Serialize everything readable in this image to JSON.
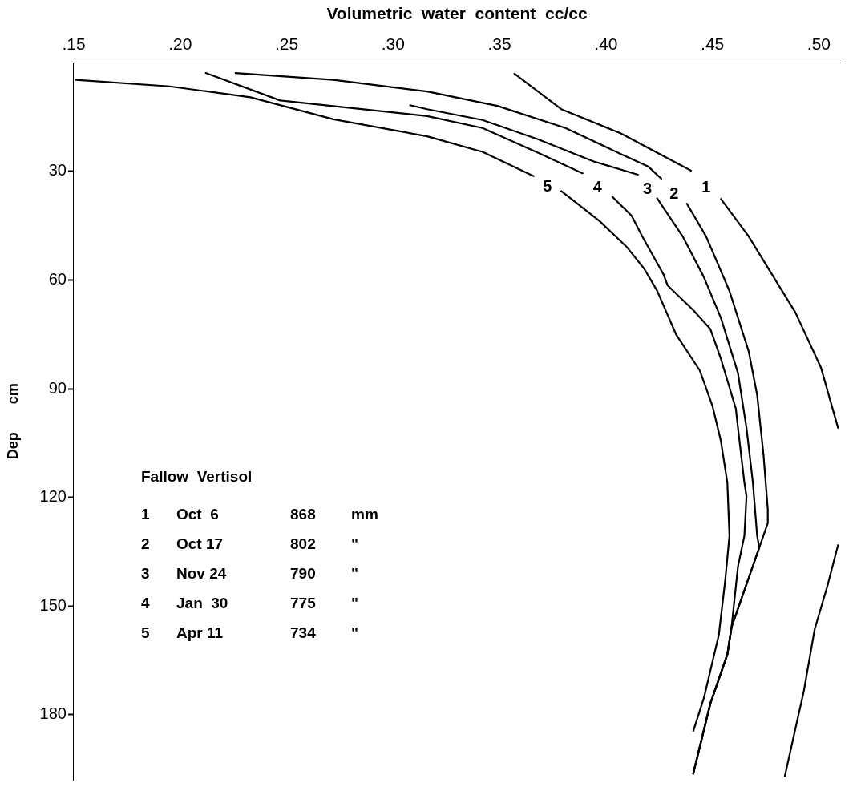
{
  "chart_data": {
    "type": "line",
    "xlabel": "Volumetric  water  content  cc/cc",
    "ylabel": "Dep       cm",
    "legend_title": "Fallow  Vertisol",
    "annotations": [
      "1\tOct  6\t868\tmm",
      "2\tOct 17\t802\t\"",
      "3\tNov 24\t790\t\"",
      "4\tJan  30\t775\t\"",
      "5\tApr 11\t734\t\""
    ],
    "xlim": [
      0.15,
      0.51
    ],
    "xticks": [
      {
        "value": 0.15,
        "label": ".15"
      },
      {
        "value": 0.2,
        "label": ".20"
      },
      {
        "value": 0.25,
        "label": ".25"
      },
      {
        "value": 0.3,
        "label": ".30"
      },
      {
        "value": 0.35,
        "label": ".35"
      },
      {
        "value": 0.4,
        "label": ".40"
      },
      {
        "value": 0.45,
        "label": ".45"
      },
      {
        "value": 0.5,
        "label": ".50"
      }
    ],
    "ylim": [
      198,
      0
    ],
    "yticks": [
      30,
      60,
      90,
      120,
      150,
      180
    ],
    "marker": "none",
    "line_style": "solid",
    "series": [
      {
        "name": "1",
        "color": "#000000",
        "x": [
          0.357,
          0.379,
          0.407,
          0.44,
          null,
          0.454,
          0.467,
          0.489,
          0.501,
          0.509,
          null,
          0.509,
          0.504,
          0.498,
          0.493,
          0.484
        ],
        "values": [
          3.0,
          12.8,
          19.5,
          29.8,
          null,
          37.6,
          47.9,
          69.0,
          84.2,
          100.8,
          null,
          133.2,
          144.5,
          156.5,
          173.3,
          197.0
        ]
      },
      {
        "name": "2",
        "color": "#000000",
        "x": [
          0.226,
          0.272,
          0.316,
          0.349,
          0.381,
          0.407,
          0.42,
          0.426,
          null,
          0.438,
          0.447,
          0.458,
          0.467,
          0.471,
          0.474,
          0.476,
          0.476,
          0.472,
          0.459,
          0.457,
          0.449,
          0.441
        ],
        "values": [
          2.8,
          4.7,
          7.9,
          11.9,
          18.0,
          25.2,
          28.7,
          32.0,
          null,
          38.9,
          47.9,
          63.0,
          79.6,
          91.7,
          108.3,
          123.4,
          127.1,
          133.9,
          155.8,
          163.4,
          177.0,
          196.3
        ]
      },
      {
        "name": "3",
        "color": "#000000",
        "x": [
          0.308,
          0.316,
          0.342,
          0.368,
          0.394,
          0.415,
          null,
          0.424,
          0.436,
          0.446,
          0.454,
          0.462,
          0.466,
          0.469,
          0.471,
          0.472,
          0.459,
          0.457,
          0.449,
          0.441
        ],
        "values": [
          11.7,
          12.8,
          15.8,
          21.1,
          27.2,
          30.9,
          null,
          37.4,
          47.9,
          59.2,
          70.5,
          85.7,
          100.8,
          115.9,
          130.6,
          133.9,
          155.8,
          163.4,
          177.0,
          196.3
        ]
      },
      {
        "name": "4",
        "color": "#000000",
        "x": [
          0.212,
          0.247,
          0.316,
          0.342,
          0.368,
          0.389,
          null,
          0.403,
          0.412,
          0.417,
          0.427,
          0.429,
          0.441,
          0.449,
          0.454,
          0.461,
          0.462,
          0.465,
          0.466,
          0.465,
          0.462,
          0.459,
          0.457,
          0.449,
          0.441
        ],
        "values": [
          2.8,
          10.4,
          14.7,
          18.0,
          24.8,
          30.5,
          null,
          37.0,
          42.2,
          47.9,
          58.4,
          61.5,
          68.3,
          73.5,
          81.8,
          95.5,
          100.8,
          115.9,
          119.7,
          130.6,
          139.1,
          155.8,
          163.4,
          177.0,
          196.3
        ]
      },
      {
        "name": "5",
        "color": "#000000",
        "x": [
          0.151,
          0.195,
          0.233,
          0.272,
          0.316,
          0.342,
          0.366,
          null,
          0.379,
          0.397,
          0.41,
          0.418,
          0.424,
          0.433,
          0.444,
          0.45,
          0.454,
          0.457,
          0.458,
          0.456,
          0.453,
          0.446,
          0.441
        ],
        "values": [
          4.7,
          6.5,
          9.5,
          15.6,
          20.3,
          24.6,
          31.3,
          null,
          35.4,
          43.7,
          51.0,
          56.9,
          62.9,
          75.1,
          84.9,
          94.7,
          104.5,
          115.9,
          130.6,
          143.0,
          158.0,
          175.4,
          184.6
        ]
      }
    ]
  }
}
